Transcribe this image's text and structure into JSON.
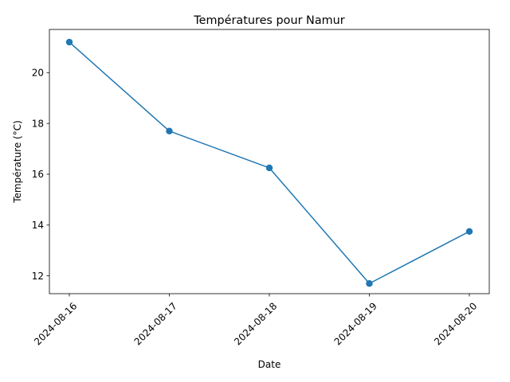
{
  "chart_data": {
    "type": "line",
    "title": "Températures pour Namur",
    "xlabel": "Date",
    "ylabel": "Température (°C)",
    "x": [
      "2024-08-16",
      "2024-08-17",
      "2024-08-18",
      "2024-08-19",
      "2024-08-20"
    ],
    "series": [
      {
        "values": [
          21.2,
          17.7,
          16.25,
          11.7,
          13.75
        ],
        "color": "#1f77b4",
        "marker": "circle"
      }
    ],
    "yticks": [
      12,
      14,
      16,
      18,
      20
    ],
    "ylim": [
      11.3,
      21.7
    ],
    "xtick_rotation": 45,
    "grid": false,
    "legend": "none"
  }
}
